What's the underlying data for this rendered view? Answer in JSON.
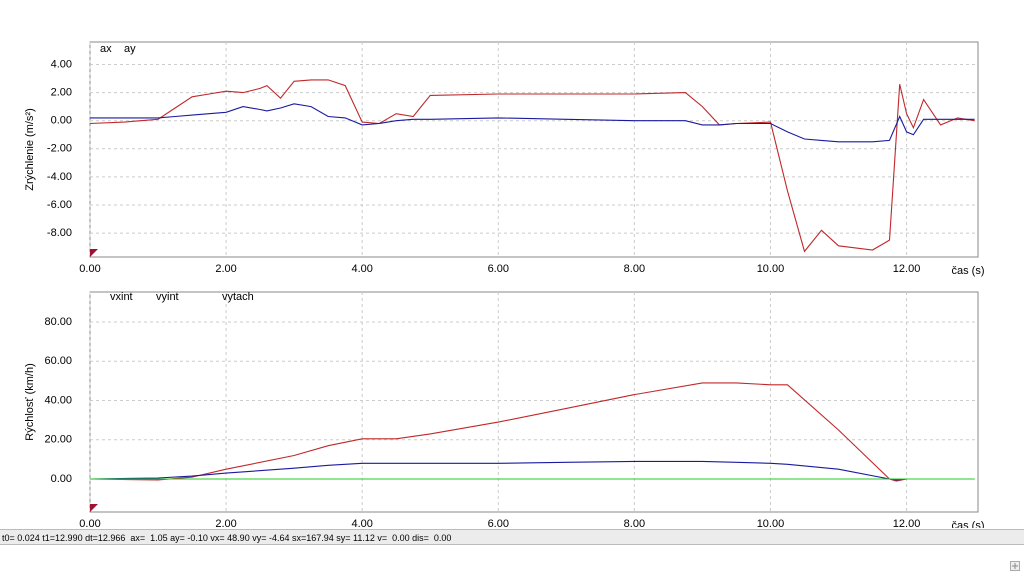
{
  "chart_data": [
    {
      "type": "line",
      "y_label": "Zrýchlenie (m/s²)",
      "x_label": "čas (s)",
      "grid": true,
      "xlim": [
        0,
        13.05
      ],
      "ylim": [
        -9.7,
        5.6
      ],
      "xticks": [
        {
          "value": 0,
          "label": "0.00"
        },
        {
          "value": 2,
          "label": "2.00"
        },
        {
          "value": 4,
          "label": "4.00"
        },
        {
          "value": 6,
          "label": "6.00"
        },
        {
          "value": 8,
          "label": "8.00"
        },
        {
          "value": 10,
          "label": "10.00"
        },
        {
          "value": 12,
          "label": "12.00"
        }
      ],
      "yticks": [
        {
          "value": -8,
          "label": "-8.00"
        },
        {
          "value": -6,
          "label": "-6.00"
        },
        {
          "value": -4,
          "label": "-4.00"
        },
        {
          "value": -2,
          "label": "-2.00"
        },
        {
          "value": 0,
          "label": "0.00"
        },
        {
          "value": 2,
          "label": "2.00"
        },
        {
          "value": 4,
          "label": "4.00"
        }
      ],
      "x": [
        0,
        0.5,
        1,
        1.25,
        1.5,
        1.75,
        2,
        2.25,
        2.5,
        2.6,
        2.8,
        3,
        3.25,
        3.5,
        3.75,
        4,
        4.25,
        4.5,
        4.75,
        5,
        6,
        7,
        8,
        8.75,
        9,
        9.25,
        9.5,
        10,
        10.25,
        10.5,
        10.75,
        11,
        11.5,
        11.75,
        11.9,
        12,
        12.1,
        12.25,
        12.5,
        12.75,
        13
      ],
      "series": [
        {
          "name": "ax",
          "color": "#c0282a",
          "values": [
            -0.2,
            -0.1,
            0.1,
            0.9,
            1.7,
            1.9,
            2.1,
            2.0,
            2.3,
            2.5,
            1.6,
            2.8,
            2.9,
            2.9,
            2.5,
            -0.1,
            -0.2,
            0.5,
            0.3,
            1.8,
            1.9,
            1.9,
            1.9,
            2.0,
            1.0,
            -0.3,
            -0.2,
            -0.1,
            -5.0,
            -9.3,
            -7.8,
            -8.9,
            -9.2,
            -8.5,
            2.6,
            0.5,
            -0.5,
            1.5,
            -0.3,
            0.2,
            0.0
          ]
        },
        {
          "name": "ay",
          "color": "#1a1aa0",
          "values": [
            0.2,
            0.2,
            0.2,
            0.3,
            0.4,
            0.5,
            0.6,
            1.0,
            0.8,
            0.7,
            0.9,
            1.2,
            1.0,
            0.3,
            0.2,
            -0.3,
            -0.2,
            0.0,
            0.1,
            0.1,
            0.2,
            0.1,
            0.0,
            0.0,
            -0.3,
            -0.3,
            -0.2,
            -0.2,
            -0.8,
            -1.3,
            -1.4,
            -1.5,
            -1.5,
            -1.4,
            0.3,
            -0.8,
            -1.0,
            0.1,
            0.1,
            0.1,
            0.1
          ]
        }
      ]
    },
    {
      "type": "line",
      "y_label": "Rýchlosť (km/h)",
      "x_label": "čas (s)",
      "grid": true,
      "xlim": [
        0,
        13.05
      ],
      "ylim": [
        -16.8,
        95.3
      ],
      "xticks": [
        {
          "value": 0,
          "label": "0.00"
        },
        {
          "value": 2,
          "label": "2.00"
        },
        {
          "value": 4,
          "label": "4.00"
        },
        {
          "value": 6,
          "label": "6.00"
        },
        {
          "value": 8,
          "label": "8.00"
        },
        {
          "value": 10,
          "label": "10.00"
        },
        {
          "value": 12,
          "label": "12.00"
        }
      ],
      "yticks": [
        {
          "value": 0,
          "label": "0.00"
        },
        {
          "value": 20,
          "label": "20.00"
        },
        {
          "value": 40,
          "label": "40.00"
        },
        {
          "value": 60,
          "label": "60.00"
        },
        {
          "value": 80,
          "label": "80.00"
        }
      ],
      "x": [
        0,
        1,
        1.5,
        2,
        3,
        3.5,
        4,
        4.5,
        5,
        6,
        7,
        8,
        9,
        9.5,
        10,
        10.25,
        11,
        11.75,
        11.85,
        12,
        12.3,
        13
      ],
      "series": [
        {
          "name": "vxint",
          "color": "#c0282a",
          "values": [
            0,
            -0.5,
            1,
            5,
            12,
            17,
            20.5,
            20.5,
            23,
            29,
            36,
            43,
            49,
            49,
            48,
            48,
            25,
            0,
            -1,
            0,
            0,
            null
          ]
        },
        {
          "name": "vyint",
          "color": "#1a1aa0",
          "values": [
            0,
            0.5,
            1.5,
            3,
            5.5,
            7,
            8,
            8,
            8,
            8,
            8.5,
            9,
            9,
            8.5,
            8,
            7.5,
            5,
            0,
            -0.5,
            0,
            null,
            null
          ]
        },
        {
          "name": "vytach",
          "color": "#22cc22",
          "values": [
            0,
            0,
            0,
            0,
            0,
            0,
            0,
            0,
            0,
            0,
            0,
            0,
            0,
            0,
            0,
            0,
            0,
            0,
            0,
            0,
            0,
            0
          ]
        }
      ]
    }
  ],
  "status_bar": "t0= 0.024 t1=12.990 dt=12.966  ax=  1.05 ay= -0.10 vx= 48.90 vy= -4.64 sx=167.94 sy= 11.12 v=  0.00 dis=  0.00"
}
